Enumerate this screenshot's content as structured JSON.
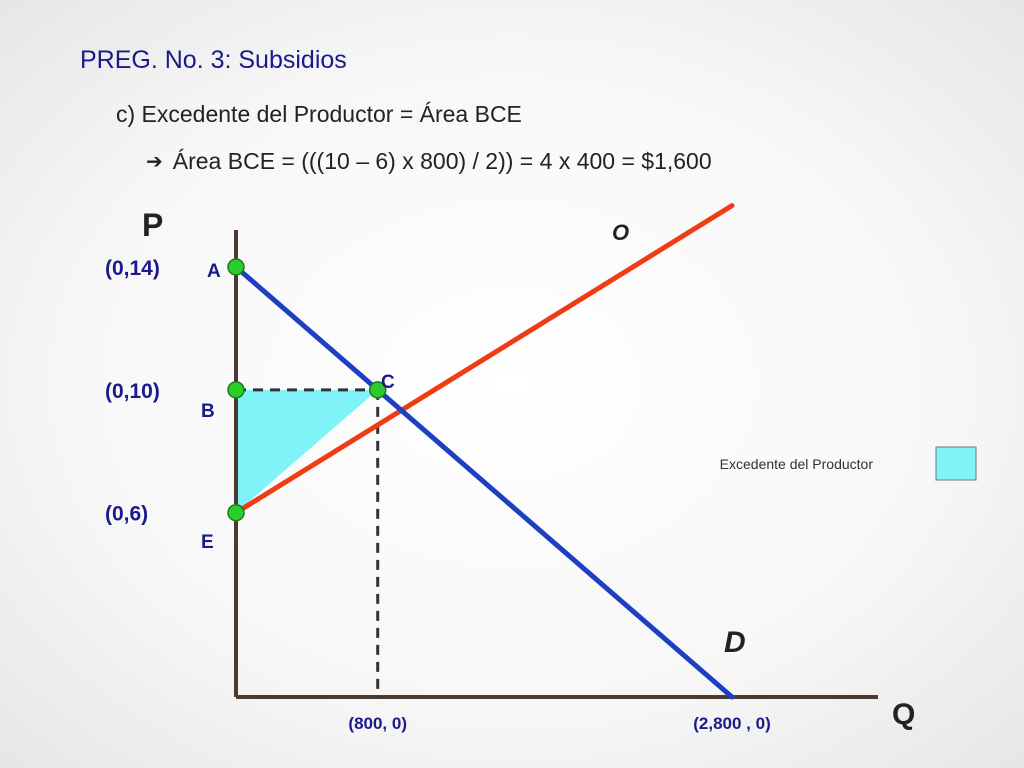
{
  "slide": {
    "title": "PREG. No. 3: Subsidios",
    "line1": "c) Excedente del Productor = Área BCE",
    "line2_arrow": "➔",
    "line2": "Área BCE = (((10 – 6) x 800) / 2)) = 4 x 400 = $1,600"
  },
  "chart_data": {
    "type": "line",
    "xlabel": "Q",
    "ylabel": "P",
    "xlim": [
      0,
      3000
    ],
    "ylim": [
      0,
      16
    ],
    "series": [
      {
        "name": "O",
        "color": "#f03c14",
        "points": [
          [
            0,
            6
          ],
          [
            2800,
            16
          ]
        ]
      },
      {
        "name": "D",
        "color": "#1f3fc2",
        "points": [
          [
            0,
            14
          ],
          [
            2800,
            0
          ]
        ]
      }
    ],
    "points": [
      {
        "label": "A",
        "coord_label": "(0,14)",
        "x": 0,
        "y": 14
      },
      {
        "label": "B",
        "coord_label": "(0,10)",
        "x": 0,
        "y": 10
      },
      {
        "label": "C",
        "coord_label": "",
        "x": 800,
        "y": 10
      },
      {
        "label": "E",
        "coord_label": "(0,6)",
        "x": 0,
        "y": 6
      }
    ],
    "x_ticks": [
      {
        "label": "(800, 0)",
        "x": 800
      },
      {
        "label": "(2,800 , 0)",
        "x": 2800
      }
    ],
    "shaded_area": {
      "label": "Excedente del Productor",
      "color": "#7ff3f8",
      "vertices": [
        "B",
        "C",
        "E"
      ]
    },
    "legend": {
      "label": "Excedente del Productor",
      "color": "#7ff3f8",
      "placement": "right"
    },
    "point_color": "#2ccc2c"
  }
}
